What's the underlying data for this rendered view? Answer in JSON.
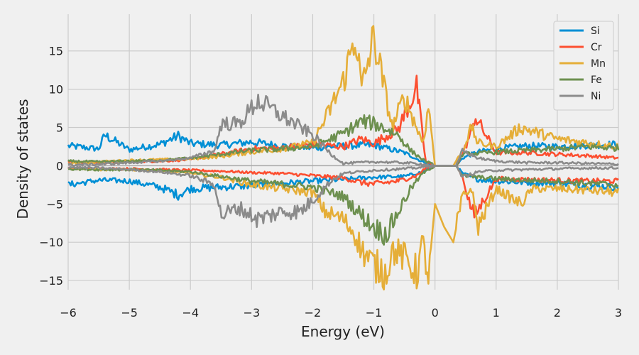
{
  "chart_data": {
    "type": "line",
    "xlabel": "Energy (eV)",
    "ylabel": "Density of states",
    "xlim": [
      -6,
      3
    ],
    "ylim": [
      -16.2,
      19.8
    ],
    "xticks": [
      -6,
      -5,
      -4,
      -3,
      -2,
      -1,
      0,
      1,
      2,
      3
    ],
    "xtick_labels": [
      "−6",
      "−5",
      "−4",
      "−3",
      "−2",
      "−1",
      "0",
      "1",
      "2",
      "3"
    ],
    "yticks": [
      -15,
      -10,
      -5,
      0,
      5,
      10,
      15
    ],
    "ytick_labels": [
      "−15",
      "−10",
      "−5",
      "0",
      "5",
      "10",
      "15"
    ],
    "grid": true,
    "legend_position": "top-right",
    "background": "#f0f0f0",
    "grid_color": "#cbcbcb",
    "series": [
      {
        "name": "Si",
        "color": "#008fd5",
        "x": [
          -6.0,
          -5.5,
          -5.4,
          -5.0,
          -4.5,
          -4.2,
          -4.0,
          -3.5,
          -3.0,
          -2.5,
          -2.0,
          -1.5,
          -1.0,
          -0.5,
          -0.2,
          0.0,
          0.35,
          0.45,
          0.7,
          1.0,
          1.5,
          2.0,
          2.5,
          3.0
        ],
        "up": [
          2.6,
          2.2,
          4.0,
          2.1,
          2.8,
          3.9,
          2.9,
          2.7,
          3.1,
          2.6,
          2.3,
          2.6,
          2.7,
          1.7,
          0.5,
          0.0,
          0.0,
          1.0,
          1.8,
          2.2,
          2.6,
          2.5,
          2.7,
          2.8
        ],
        "down": [
          -2.5,
          -1.9,
          -1.9,
          -2.0,
          -2.8,
          -3.8,
          -3.0,
          -2.8,
          -2.6,
          -2.3,
          -2.0,
          -1.8,
          -1.5,
          -1.4,
          -0.8,
          0.0,
          0.0,
          -1.0,
          -1.8,
          -2.0,
          -2.2,
          -2.3,
          -2.6,
          -2.8
        ]
      },
      {
        "name": "Cr",
        "color": "#fc4f30",
        "x": [
          -6.0,
          -5.5,
          -5.0,
          -4.5,
          -4.0,
          -3.5,
          -3.0,
          -2.5,
          -2.0,
          -1.5,
          -1.2,
          -1.0,
          -0.6,
          -0.3,
          -0.15,
          0.0,
          0.35,
          0.45,
          0.6,
          0.65,
          1.0,
          1.5,
          2.0,
          2.5,
          3.0
        ],
        "up": [
          0.5,
          0.4,
          0.5,
          0.6,
          0.8,
          1.5,
          2.2,
          2.3,
          2.8,
          2.5,
          3.5,
          2.9,
          4.8,
          10.2,
          0.5,
          0.0,
          0.0,
          1.5,
          4.5,
          6.5,
          1.7,
          1.7,
          1.5,
          1.3,
          1.0
        ],
        "down": [
          -0.3,
          -0.4,
          -0.4,
          -0.5,
          -0.6,
          -0.7,
          -0.9,
          -1.0,
          -1.3,
          -1.6,
          -2.2,
          -2.4,
          -2.0,
          -1.3,
          -0.3,
          0.0,
          0.0,
          -1.5,
          -5.8,
          -6.5,
          -1.7,
          -1.8,
          -1.9,
          -2.0,
          -2.0
        ]
      },
      {
        "name": "Mn",
        "color": "#e5ae38",
        "x": [
          -6.0,
          -5.5,
          -5.0,
          -4.5,
          -4.0,
          -3.5,
          -3.0,
          -2.5,
          -2.0,
          -1.8,
          -1.5,
          -1.3,
          -1.2,
          -1.0,
          -0.8,
          -0.7,
          -0.5,
          -0.3,
          -0.2,
          -0.1,
          0.0,
          0.15,
          0.3,
          0.45,
          0.6,
          0.7,
          1.0,
          1.4,
          1.6,
          2.0,
          2.5,
          3.0
        ],
        "up": [
          0.3,
          0.5,
          0.7,
          0.8,
          0.9,
          1.2,
          1.8,
          2.2,
          3.0,
          6.0,
          11.0,
          17.2,
          10.0,
          16.8,
          9.0,
          5.0,
          9.0,
          5.0,
          3.0,
          7.8,
          0.0,
          0.0,
          0.0,
          2.0,
          5.0,
          3.0,
          2.5,
          5.0,
          4.5,
          3.5,
          3.0,
          2.5
        ],
        "down": [
          -0.4,
          -0.5,
          -0.5,
          -0.7,
          -1.0,
          -1.5,
          -2.5,
          -3.0,
          -3.5,
          -6.0,
          -7.0,
          -9.0,
          -11.0,
          -13.0,
          -14.0,
          -11.0,
          -12.0,
          -14.0,
          -10.0,
          -15.0,
          -5.0,
          -8.0,
          -10.0,
          -4.0,
          -3.0,
          -8.0,
          -3.0,
          -5.0,
          -3.0,
          -3.0,
          -3.2,
          -3.5
        ]
      },
      {
        "name": "Fe",
        "color": "#6d904f",
        "x": [
          -6.0,
          -5.5,
          -5.0,
          -4.5,
          -4.0,
          -3.5,
          -3.0,
          -2.5,
          -2.0,
          -1.5,
          -1.2,
          -1.0,
          -0.8,
          -0.6,
          -0.4,
          -0.2,
          0.0,
          0.35,
          0.45,
          0.7,
          1.0,
          1.5,
          2.0,
          2.5,
          3.0
        ],
        "up": [
          0.6,
          0.5,
          0.6,
          0.7,
          1.0,
          1.5,
          2.0,
          2.2,
          2.5,
          4.2,
          5.8,
          5.5,
          4.8,
          4.0,
          2.0,
          0.8,
          0.0,
          0.0,
          1.5,
          1.6,
          1.8,
          2.0,
          2.2,
          2.5,
          2.3
        ],
        "down": [
          -0.4,
          -0.5,
          -0.5,
          -0.6,
          -0.8,
          -1.4,
          -2.0,
          -2.4,
          -2.8,
          -4.0,
          -6.5,
          -8.0,
          -9.0,
          -6.0,
          -3.0,
          -1.0,
          0.0,
          0.0,
          -1.3,
          -1.5,
          -1.7,
          -1.9,
          -2.0,
          -2.3,
          -2.5
        ]
      },
      {
        "name": "Ni",
        "color": "#8b8b8b",
        "x": [
          -6.0,
          -5.5,
          -5.0,
          -4.5,
          -4.0,
          -3.6,
          -3.5,
          -3.2,
          -2.9,
          -2.5,
          -2.2,
          -2.0,
          -1.7,
          -1.5,
          -1.0,
          -0.5,
          -0.2,
          0.0,
          0.35,
          0.45,
          0.7,
          1.0,
          1.5,
          2.0,
          2.5,
          3.0
        ],
        "up": [
          0.1,
          0.2,
          0.4,
          0.6,
          1.0,
          2.0,
          5.5,
          5.5,
          8.5,
          6.5,
          5.0,
          4.0,
          1.5,
          0.3,
          0.5,
          0.4,
          0.2,
          0.0,
          0.0,
          2.0,
          1.0,
          0.6,
          0.4,
          0.4,
          0.3,
          0.2
        ],
        "down": [
          -0.2,
          -0.3,
          -0.5,
          -0.8,
          -1.3,
          -2.5,
          -6.5,
          -5.5,
          -7.0,
          -6.0,
          -6.0,
          -4.5,
          -2.0,
          -1.0,
          -0.6,
          -0.4,
          -0.2,
          0.0,
          0.0,
          -1.5,
          -0.8,
          -0.6,
          -0.5,
          -0.4,
          -0.3,
          -0.3
        ]
      }
    ]
  }
}
